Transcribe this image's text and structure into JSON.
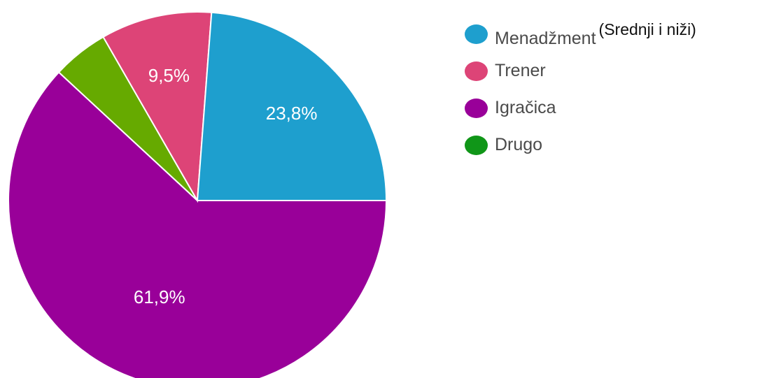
{
  "chart_data": {
    "type": "pie",
    "title": "",
    "slices": [
      {
        "label": "Igračica",
        "value": 61.9,
        "value_label": "61,9%",
        "color": "#990099"
      },
      {
        "label": "Drugo",
        "value": 4.8,
        "value_label": "",
        "color": "#66aa00"
      },
      {
        "label": "Trener",
        "value": 9.5,
        "value_label": "9,5%",
        "color": "#dd4477"
      },
      {
        "label": "Menadžment",
        "value": 23.8,
        "value_label": "23,8%",
        "color": "#1e9fce"
      }
    ],
    "legend": [
      {
        "label": "Menadžment",
        "extra": "(Srednji i niži)",
        "color": "#1e9fce"
      },
      {
        "label": "Trener",
        "extra": "",
        "color": "#dd4477"
      },
      {
        "label": "Igračica",
        "extra": "",
        "color": "#990099"
      },
      {
        "label": "Drugo",
        "extra": "",
        "color": "#109618"
      }
    ],
    "legend_position": "right"
  }
}
